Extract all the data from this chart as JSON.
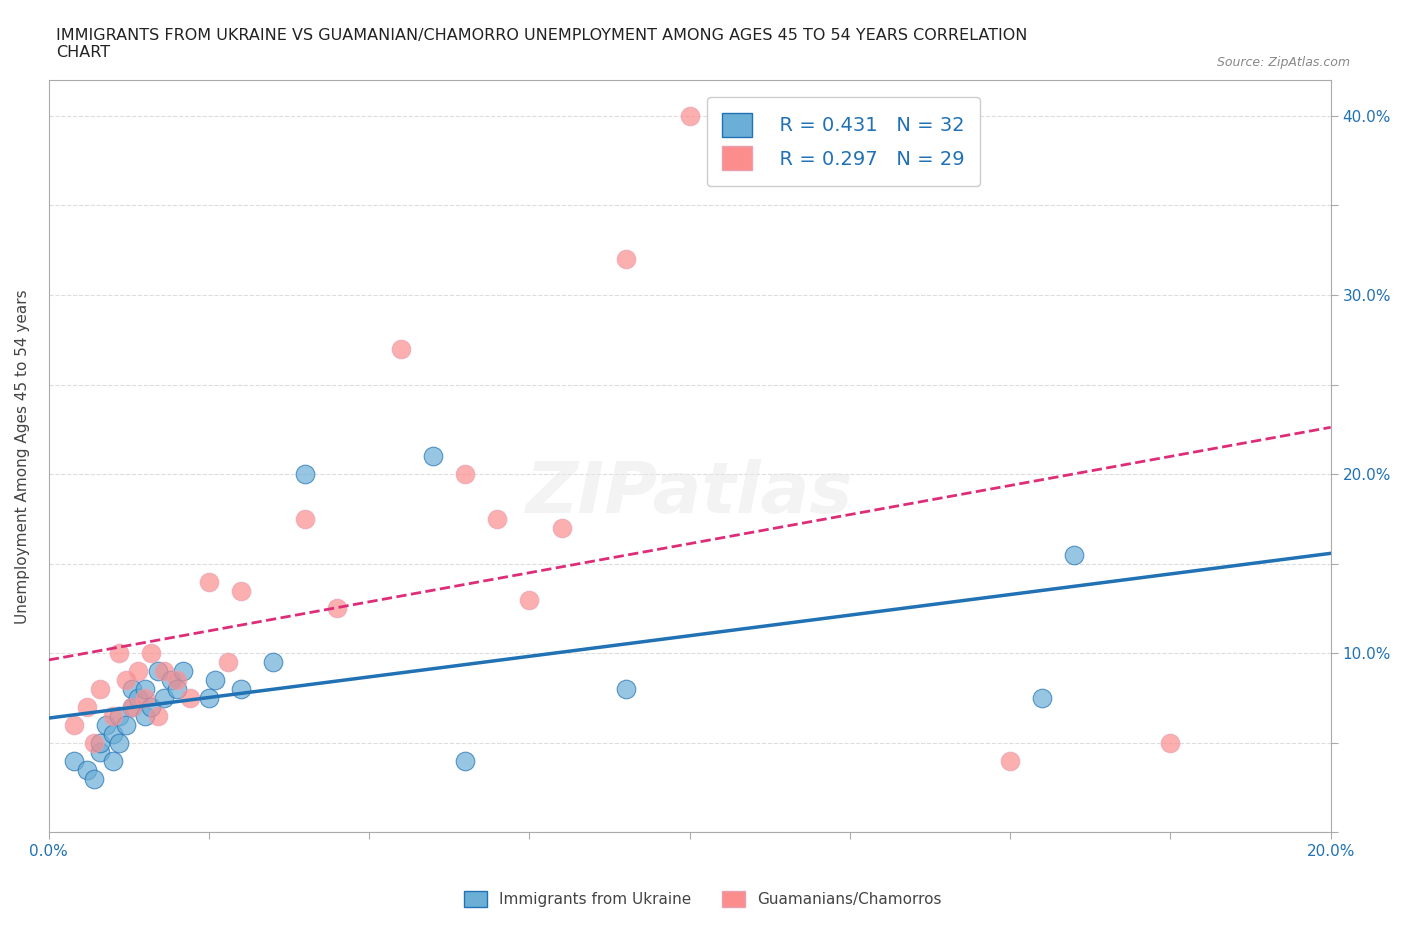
{
  "title": "IMMIGRANTS FROM UKRAINE VS GUAMANIAN/CHAMORRO UNEMPLOYMENT AMONG AGES 45 TO 54 YEARS CORRELATION\nCHART",
  "source": "Source: ZipAtlas.com",
  "xlabel": "",
  "ylabel": "Unemployment Among Ages 45 to 54 years",
  "xlim": [
    0.0,
    0.2
  ],
  "ylim": [
    0.0,
    0.42
  ],
  "xticks": [
    0.0,
    0.025,
    0.05,
    0.075,
    0.1,
    0.125,
    0.15,
    0.175,
    0.2
  ],
  "yticks": [
    0.0,
    0.05,
    0.1,
    0.15,
    0.2,
    0.25,
    0.3,
    0.35,
    0.4
  ],
  "ytick_labels": [
    "",
    "",
    "10.0%",
    "",
    "20.0%",
    "",
    "30.0%",
    "",
    "40.0%"
  ],
  "xtick_labels": [
    "0.0%",
    "",
    "",
    "",
    "",
    "",
    "",
    "",
    "20.0%"
  ],
  "blue_color": "#6baed6",
  "pink_color": "#fc8d8d",
  "blue_line_color": "#2171b5",
  "pink_line_color": "#de2d78",
  "R_blue": 0.431,
  "N_blue": 32,
  "R_pink": 0.297,
  "N_pink": 29,
  "blue_scatter_x": [
    0.004,
    0.006,
    0.007,
    0.008,
    0.008,
    0.009,
    0.01,
    0.01,
    0.011,
    0.011,
    0.012,
    0.013,
    0.013,
    0.014,
    0.015,
    0.015,
    0.016,
    0.017,
    0.018,
    0.019,
    0.02,
    0.021,
    0.025,
    0.026,
    0.03,
    0.035,
    0.04,
    0.06,
    0.065,
    0.09,
    0.155,
    0.16
  ],
  "blue_scatter_y": [
    0.04,
    0.035,
    0.03,
    0.045,
    0.05,
    0.06,
    0.04,
    0.055,
    0.05,
    0.065,
    0.06,
    0.07,
    0.08,
    0.075,
    0.065,
    0.08,
    0.07,
    0.09,
    0.075,
    0.085,
    0.08,
    0.09,
    0.075,
    0.085,
    0.08,
    0.095,
    0.2,
    0.21,
    0.04,
    0.08,
    0.075,
    0.155
  ],
  "pink_scatter_x": [
    0.004,
    0.006,
    0.007,
    0.008,
    0.01,
    0.011,
    0.012,
    0.013,
    0.014,
    0.015,
    0.016,
    0.017,
    0.018,
    0.02,
    0.022,
    0.025,
    0.028,
    0.03,
    0.04,
    0.045,
    0.055,
    0.065,
    0.07,
    0.075,
    0.08,
    0.09,
    0.1,
    0.15,
    0.175
  ],
  "pink_scatter_y": [
    0.06,
    0.07,
    0.05,
    0.08,
    0.065,
    0.1,
    0.085,
    0.07,
    0.09,
    0.075,
    0.1,
    0.065,
    0.09,
    0.085,
    0.075,
    0.14,
    0.095,
    0.135,
    0.175,
    0.125,
    0.27,
    0.2,
    0.175,
    0.13,
    0.17,
    0.32,
    0.4,
    0.04,
    0.05
  ],
  "watermark": "ZIPatlas",
  "background_color": "#ffffff",
  "grid_color": "#dddddd"
}
